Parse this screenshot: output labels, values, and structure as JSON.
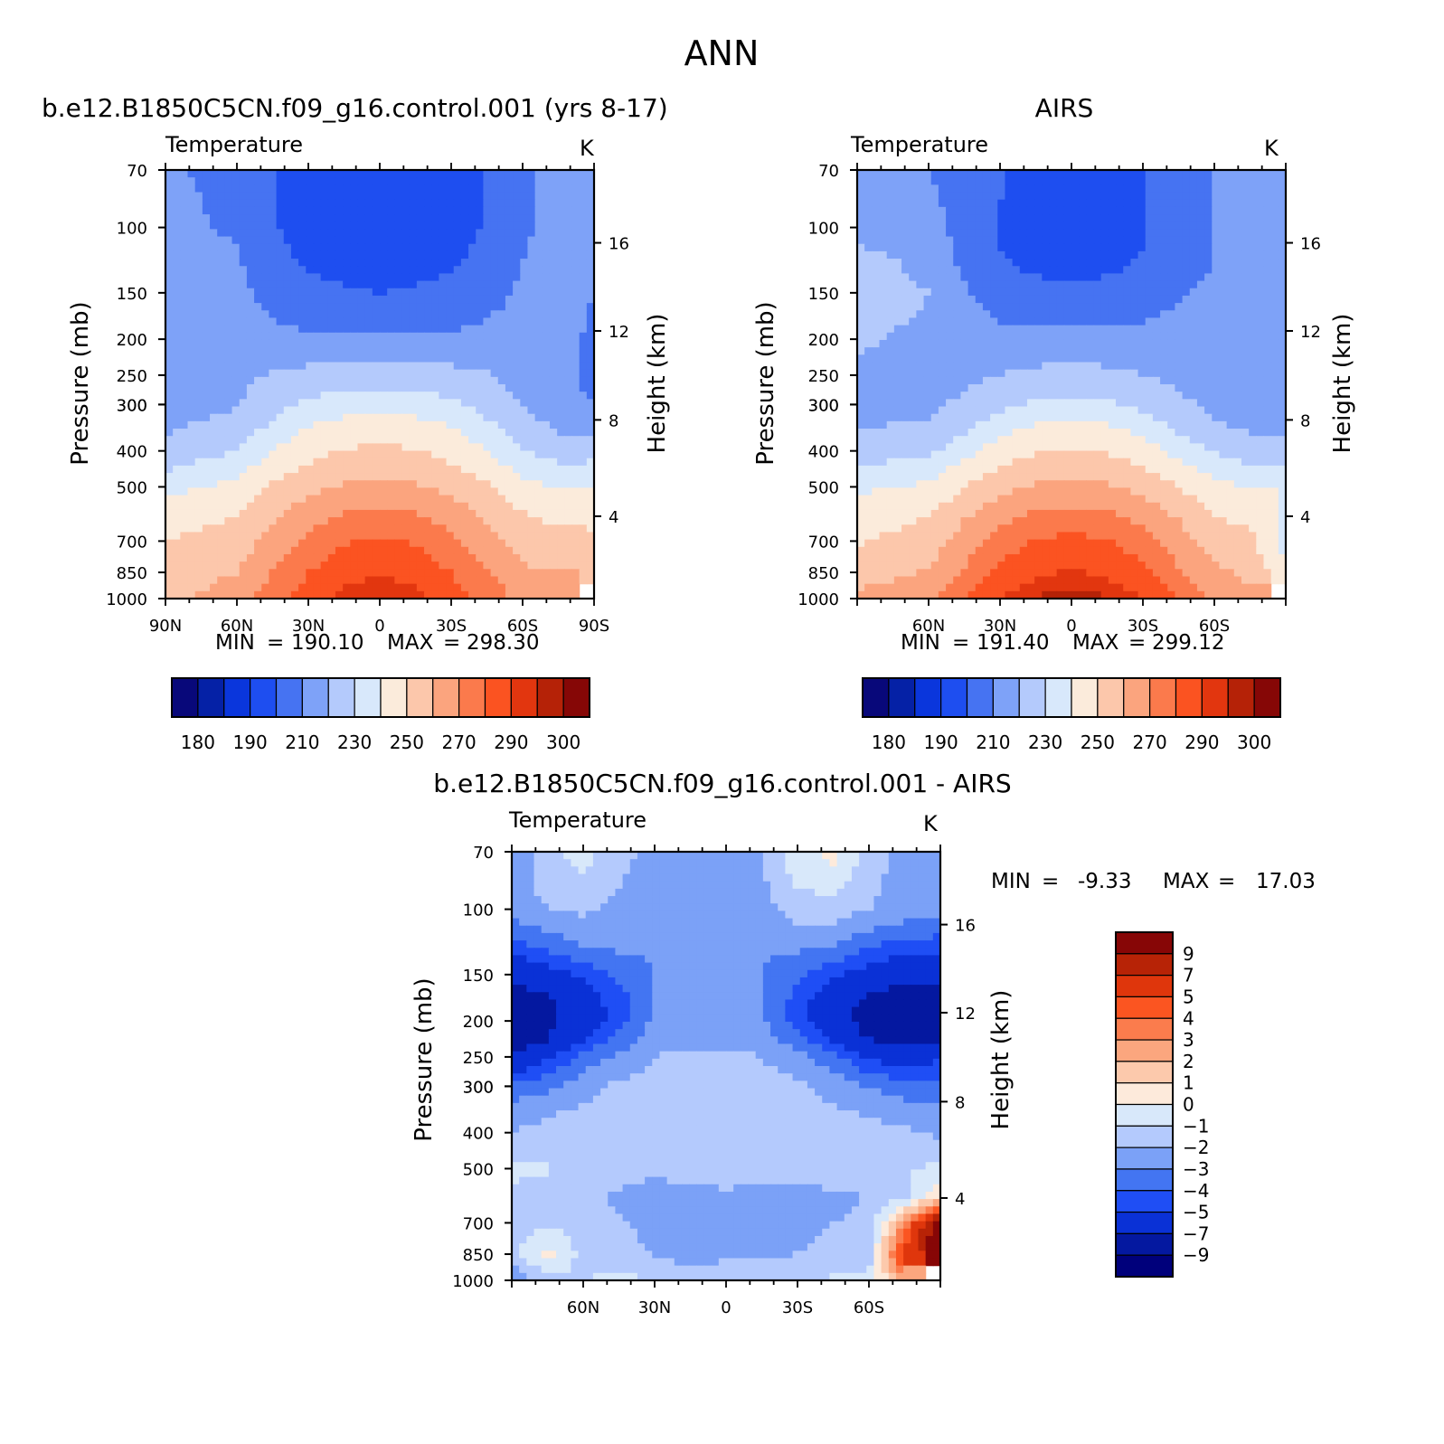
{
  "figure": {
    "season": "ANN",
    "min_label": "MIN",
    "max_label": "MAX"
  },
  "colormaps": {
    "absolute": [
      "#08087a",
      "#0521a6",
      "#0a36dc",
      "#1e4ef0",
      "#4673f2",
      "#7ea2f8",
      "#b4cafc",
      "#d8e8fb",
      "#fbebdb",
      "#fcc7ab",
      "#fba47e",
      "#fb7a4c",
      "#fb5321",
      "#e2360f",
      "#b52207",
      "#860706"
    ],
    "difference": [
      "#00007b",
      "#0418a0",
      "#0a31d6",
      "#1f4ef5",
      "#4375f2",
      "#7ba1f7",
      "#b4cafd",
      "#d8e8fa",
      "#fdeadb",
      "#fcc9ac",
      "#fba67e",
      "#fb7c4d",
      "#fb5521",
      "#df360c",
      "#b72306",
      "#870606"
    ]
  },
  "chart_data": [
    {
      "id": "model",
      "type": "heatmap",
      "title": "b.e12.B1850C5CN.f09_g16.control.001 (yrs 8-17)",
      "variable": "Temperature",
      "units": "K",
      "ylabel": "Pressure (mb)",
      "ylabel_right": "Height (km)",
      "x_ticks": [
        {
          "lat": 90,
          "label": "90N"
        },
        {
          "lat": 60,
          "label": "60N"
        },
        {
          "lat": 30,
          "label": "30N"
        },
        {
          "lat": 0,
          "label": "0"
        },
        {
          "lat": -30,
          "label": "30S"
        },
        {
          "lat": -60,
          "label": "60S"
        },
        {
          "lat": -90,
          "label": "90S"
        }
      ],
      "p_ticks": [
        70,
        100,
        150,
        200,
        250,
        300,
        300,
        400,
        500,
        700,
        850,
        1000
      ],
      "height_ticks": [
        {
          "p": 110,
          "label": "16"
        },
        {
          "p": 190,
          "label": "12"
        },
        {
          "p": 330,
          "label": "8"
        },
        {
          "p": 600,
          "label": "4"
        }
      ],
      "min": "190.10",
      "max": "298.30",
      "lat_nodes": [
        90,
        60,
        45,
        30,
        15,
        0,
        -15,
        -30,
        -45,
        -60,
        -75,
        -90
      ],
      "p_nodes": [
        70,
        100,
        125,
        150,
        175,
        200,
        225,
        250,
        300,
        350,
        400,
        450,
        500,
        600,
        700,
        850,
        1000
      ],
      "levels": [
        175,
        180,
        185,
        190,
        200,
        210,
        220,
        230,
        240,
        250,
        260,
        270,
        280,
        290,
        295,
        300
      ],
      "values": [
        [
          211,
          208,
          200,
          197,
          195,
          195,
          195,
          197,
          200,
          208,
          215,
          214
        ],
        [
          212,
          209,
          201,
          196,
          194,
          193,
          194,
          196,
          201,
          208,
          214,
          211
        ],
        [
          214,
          211,
          203,
          199,
          197,
          196,
          197,
          199,
          203,
          210,
          215,
          211
        ],
        [
          216,
          213,
          206,
          203,
          201,
          200,
          201,
          203,
          206,
          212,
          216,
          210
        ],
        [
          216,
          214,
          210,
          207,
          206,
          205,
          206,
          207,
          210,
          213,
          215,
          208
        ],
        [
          216,
          215,
          212,
          212,
          213,
          214,
          213,
          212,
          212,
          214,
          214,
          208
        ],
        [
          217,
          217,
          217,
          218,
          219,
          219,
          219,
          218,
          217,
          215,
          214,
          207
        ],
        [
          217,
          218,
          221,
          223,
          224,
          224,
          224,
          223,
          221,
          217,
          214,
          206
        ],
        [
          216,
          219,
          226,
          232,
          236,
          237,
          236,
          232,
          226,
          219,
          214,
          211
        ],
        [
          219,
          224,
          233,
          241,
          244,
          245,
          244,
          241,
          233,
          225,
          219,
          217
        ],
        [
          224,
          230,
          240,
          247,
          251,
          252,
          251,
          247,
          240,
          230,
          226,
          225
        ],
        [
          229,
          237,
          246,
          252,
          256,
          257,
          256,
          252,
          246,
          237,
          232,
          234
        ],
        [
          237,
          243,
          251,
          257,
          261,
          262,
          261,
          257,
          251,
          243,
          239,
          240
        ],
        [
          245,
          250,
          259,
          266,
          271,
          272,
          271,
          266,
          259,
          251,
          248,
          247
        ],
        [
          250,
          255,
          264,
          273,
          279,
          281,
          279,
          273,
          264,
          255,
          254,
          253
        ],
        [
          255,
          260,
          270,
          280,
          287,
          289,
          287,
          280,
          270,
          262,
          260,
          258
        ],
        [
          256,
          266,
          277,
          286,
          293,
          295,
          293,
          286,
          277,
          267,
          263,
          null
        ]
      ]
    },
    {
      "id": "obs",
      "type": "heatmap",
      "title": "AIRS",
      "variable": "Temperature",
      "units": "K",
      "ylabel": "Pressure (mb)",
      "ylabel_right": "Height (km)",
      "x_ticks": [
        {
          "lat": 60,
          "label": "60N"
        },
        {
          "lat": 30,
          "label": "30N"
        },
        {
          "lat": 0,
          "label": "0"
        },
        {
          "lat": -30,
          "label": "30S"
        },
        {
          "lat": -60,
          "label": "60S"
        }
      ],
      "p_ticks": [
        70,
        100,
        150,
        200,
        250,
        300,
        300,
        400,
        500,
        700,
        850,
        1000
      ],
      "height_ticks": [
        {
          "p": 110,
          "label": "16"
        },
        {
          "p": 190,
          "label": "12"
        },
        {
          "p": 330,
          "label": "8"
        },
        {
          "p": 600,
          "label": "4"
        }
      ],
      "min": "191.40",
      "max": "299.12",
      "lat_nodes": [
        90,
        60,
        45,
        30,
        15,
        0,
        -15,
        -30,
        -45,
        -60,
        -75,
        -90
      ],
      "p_nodes": [
        70,
        100,
        125,
        150,
        175,
        200,
        225,
        250,
        300,
        350,
        400,
        450,
        500,
        600,
        700,
        850,
        1000
      ],
      "levels": [
        175,
        180,
        185,
        190,
        200,
        210,
        220,
        230,
        240,
        250,
        260,
        270,
        280,
        290,
        295,
        300
      ],
      "values": [
        [
          212,
          210,
          206,
          201,
          197,
          195,
          197,
          200,
          206,
          210,
          214,
          214
        ],
        [
          218,
          214,
          206,
          199,
          196,
          195,
          196,
          199,
          205,
          210,
          213,
          210
        ],
        [
          223,
          218,
          208,
          201,
          198,
          197,
          198,
          201,
          206,
          210,
          212,
          211
        ],
        [
          224,
          220,
          211,
          205,
          203,
          202,
          203,
          205,
          209,
          212,
          212,
          212
        ],
        [
          224,
          219,
          213,
          209,
          208,
          207,
          208,
          209,
          212,
          213,
          213,
          213
        ],
        [
          223,
          215,
          214,
          213,
          214,
          215,
          214,
          213,
          213,
          214,
          213,
          213
        ],
        [
          219,
          213,
          216,
          217,
          218,
          219,
          218,
          217,
          216,
          215,
          214,
          214
        ],
        [
          213,
          215,
          218,
          220,
          222,
          223,
          222,
          220,
          218,
          216,
          215,
          215
        ],
        [
          216,
          218,
          222,
          227,
          232,
          233,
          232,
          227,
          222,
          218,
          216,
          216
        ],
        [
          220,
          222,
          229,
          237,
          242,
          243,
          242,
          237,
          229,
          222,
          219,
          219
        ],
        [
          225,
          228,
          236,
          245,
          249,
          250,
          249,
          245,
          236,
          229,
          225,
          225
        ],
        [
          231,
          235,
          244,
          251,
          255,
          256,
          255,
          251,
          244,
          236,
          232,
          232
        ],
        [
          238,
          242,
          250,
          257,
          261,
          262,
          261,
          257,
          250,
          243,
          240,
          240
        ],
        [
          245,
          250,
          259,
          267,
          272,
          273,
          272,
          267,
          259,
          250,
          247,
          238
        ],
        [
          249,
          255,
          265,
          275,
          281,
          283,
          281,
          275,
          265,
          255,
          253,
          236
        ],
        [
          256,
          261,
          271,
          282,
          288,
          291,
          288,
          282,
          271,
          262,
          258,
          241
        ],
        [
          262,
          266,
          279,
          290,
          296,
          298,
          296,
          290,
          279,
          268,
          262,
          null
        ]
      ]
    },
    {
      "id": "diff",
      "type": "heatmap",
      "title": "b.e12.B1850C5CN.f09_g16.control.001 - AIRS",
      "variable": "Temperature",
      "units": "K",
      "ylabel": "Pressure (mb)",
      "ylabel_right": "Height (km)",
      "x_ticks": [
        {
          "lat": 60,
          "label": "60N"
        },
        {
          "lat": 30,
          "label": "30N"
        },
        {
          "lat": 0,
          "label": "0"
        },
        {
          "lat": -30,
          "label": "30S"
        },
        {
          "lat": -60,
          "label": "60S"
        }
      ],
      "p_ticks": [
        70,
        100,
        150,
        200,
        250,
        300,
        300,
        400,
        500,
        700,
        850,
        1000
      ],
      "height_ticks": [
        {
          "p": 110,
          "label": "16"
        },
        {
          "p": 190,
          "label": "12"
        },
        {
          "p": 330,
          "label": "8"
        },
        {
          "p": 600,
          "label": "4"
        }
      ],
      "min": "-9.33",
      "max": "17.03",
      "levels": [
        -11,
        -9,
        -7,
        -5,
        -4,
        -3,
        -2,
        -1,
        0,
        1,
        2,
        3,
        4,
        5,
        7,
        9
      ],
      "lat_nodes": [
        90,
        75,
        60,
        45,
        30,
        15,
        0,
        -15,
        -30,
        -45,
        -60,
        -75,
        -90
      ],
      "p_nodes": [
        70,
        100,
        125,
        150,
        175,
        200,
        225,
        250,
        300,
        350,
        400,
        450,
        500,
        600,
        700,
        850,
        1000
      ],
      "values": [
        [
          -3.0,
          -1.2,
          -0.6,
          -1.5,
          -2.5,
          -2.8,
          -2.6,
          -2.0,
          -0.3,
          0.3,
          -1.5,
          -2.4,
          -2.6
        ],
        [
          -2.5,
          -2.0,
          -1.8,
          -2.4,
          -2.6,
          -2.6,
          -2.6,
          -2.4,
          -1.5,
          -1.4,
          -2.0,
          -2.4,
          -2.4
        ],
        [
          -4.5,
          -3.6,
          -3.0,
          -2.8,
          -2.8,
          -2.7,
          -2.7,
          -2.8,
          -2.8,
          -3.0,
          -3.8,
          -4.4,
          -4.6
        ],
        [
          -6.5,
          -5.6,
          -4.8,
          -3.8,
          -3.0,
          -2.8,
          -2.8,
          -3.0,
          -3.8,
          -4.8,
          -5.6,
          -6.4,
          -6.6
        ],
        [
          -8.0,
          -7.3,
          -5.8,
          -4.4,
          -3.0,
          -2.8,
          -2.8,
          -3.0,
          -4.4,
          -6.0,
          -7.5,
          -8.0,
          -7.8
        ],
        [
          -9.2,
          -7.5,
          -6.0,
          -4.4,
          -2.8,
          -2.6,
          -2.6,
          -2.8,
          -4.4,
          -6.2,
          -7.8,
          -8.3,
          -8.0
        ],
        [
          -8.2,
          -7.0,
          -5.0,
          -3.6,
          -2.4,
          -2.2,
          -2.2,
          -2.4,
          -3.6,
          -5.2,
          -7.0,
          -7.6,
          -7.4
        ],
        [
          -6.5,
          -5.2,
          -3.6,
          -2.8,
          -2.0,
          -1.8,
          -1.8,
          -2.0,
          -2.6,
          -3.6,
          -5.2,
          -5.8,
          -5.2
        ],
        [
          -3.6,
          -3.2,
          -2.4,
          -1.8,
          -1.6,
          -1.6,
          -1.6,
          -1.6,
          -1.8,
          -2.4,
          -3.0,
          -3.4,
          -3.4
        ],
        [
          -2.6,
          -2.2,
          -1.8,
          -1.6,
          -1.5,
          -1.5,
          -1.5,
          -1.5,
          -1.6,
          -1.8,
          -2.2,
          -2.6,
          -2.8
        ],
        [
          -2.0,
          -1.6,
          -1.5,
          -1.5,
          -1.5,
          -1.5,
          -1.5,
          -1.5,
          -1.5,
          -1.5,
          -1.6,
          -1.8,
          -2.2
        ],
        [
          -1.5,
          -1.2,
          -1.4,
          -1.5,
          -1.5,
          -1.5,
          -1.5,
          -1.5,
          -1.5,
          -1.5,
          -1.5,
          -1.6,
          -1.4
        ],
        [
          -0.8,
          -0.9,
          -1.4,
          -1.6,
          -1.7,
          -1.6,
          -1.6,
          -1.7,
          -1.6,
          -1.5,
          -1.5,
          -1.2,
          -0.6
        ],
        [
          -1.2,
          -1.6,
          -1.8,
          -2.2,
          -2.6,
          -2.4,
          -2.2,
          -2.4,
          -2.4,
          -2.2,
          -2.0,
          -1.2,
          1.0
        ],
        [
          -1.5,
          -1.2,
          -1.5,
          -1.8,
          -2.4,
          -2.6,
          -2.4,
          -2.4,
          -2.2,
          -2.0,
          -1.8,
          3.0,
          10.0
        ],
        [
          -1.2,
          0.4,
          -1.4,
          -1.6,
          -2.0,
          -2.4,
          -2.2,
          -2.2,
          -2.0,
          -1.8,
          -1.5,
          6.0,
          12.0
        ],
        [
          -3.0,
          -1.5,
          -1.0,
          -0.6,
          -1.2,
          -1.4,
          -1.3,
          -1.2,
          -1.2,
          -0.8,
          -0.6,
          2.0,
          null
        ]
      ]
    }
  ],
  "colorbars": {
    "model_labels": [
      "180",
      "190",
      "210",
      "230",
      "250",
      "270",
      "290",
      "300"
    ],
    "obs_labels": [
      "180",
      "190",
      "210",
      "230",
      "250",
      "270",
      "290",
      "300"
    ],
    "diff_labels": [
      "9",
      "7",
      "5",
      "4",
      "3",
      "2",
      "1",
      "0",
      "−1",
      "−2",
      "−3",
      "−4",
      "−5",
      "−7",
      "−9"
    ]
  }
}
